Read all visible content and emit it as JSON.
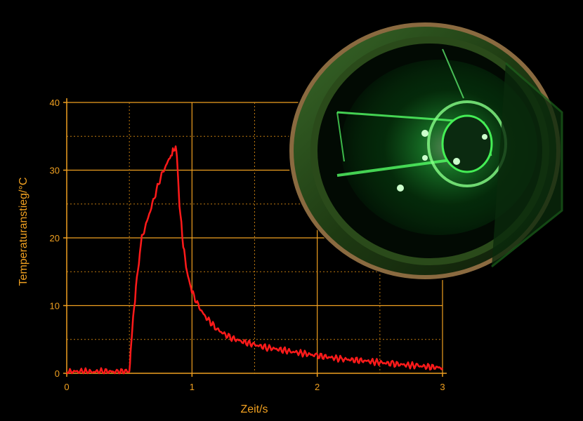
{
  "colors": {
    "background": "#000000",
    "axis": "#f0a020",
    "series": "#ff1a1a",
    "grid_major": "#f0a020",
    "grid_minor": "#c07a10",
    "photo_glow": "#33ff55"
  },
  "photo": {
    "icon": "laser-optics-photo"
  },
  "chart_data": {
    "type": "line",
    "xlabel": "Zeit/s",
    "ylabel": "Temperaturanstieg/°C",
    "xlim": [
      0,
      3
    ],
    "ylim": [
      0,
      40
    ],
    "xticks": [
      "0",
      "1",
      "2",
      "3"
    ],
    "yticks": [
      "0",
      "10",
      "20",
      "30",
      "40"
    ],
    "grid": "major solid, minor dotted",
    "series": [
      {
        "x": [
          0,
          0.1,
          0.2,
          0.3,
          0.4,
          0.5,
          0.51,
          0.53,
          0.56,
          0.6,
          0.65,
          0.7,
          0.75,
          0.8,
          0.84,
          0.87,
          0.88,
          0.9,
          0.93,
          0.96,
          1.0,
          1.05,
          1.1,
          1.2,
          1.3,
          1.4,
          1.5,
          1.6,
          1.8,
          2.0,
          2.2,
          2.4,
          2.6,
          2.8,
          3.0
        ],
        "y": [
          0.2,
          0.3,
          0.2,
          0.3,
          0.2,
          0.3,
          3,
          8,
          14,
          20,
          23,
          26,
          29,
          31,
          32.5,
          33.5,
          32,
          25,
          19,
          15,
          12,
          10,
          8.5,
          6.5,
          5.3,
          4.7,
          4.2,
          3.8,
          3.2,
          2.6,
          2.1,
          1.8,
          1.4,
          1.1,
          0.8
        ]
      }
    ]
  }
}
